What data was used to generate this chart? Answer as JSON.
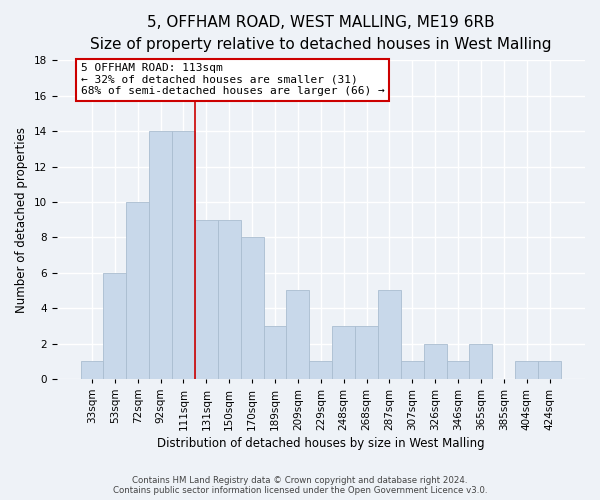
{
  "title": "5, OFFHAM ROAD, WEST MALLING, ME19 6RB",
  "subtitle": "Size of property relative to detached houses in West Malling",
  "xlabel": "Distribution of detached houses by size in West Malling",
  "ylabel": "Number of detached properties",
  "bar_labels": [
    "33sqm",
    "53sqm",
    "72sqm",
    "92sqm",
    "111sqm",
    "131sqm",
    "150sqm",
    "170sqm",
    "189sqm",
    "209sqm",
    "229sqm",
    "248sqm",
    "268sqm",
    "287sqm",
    "307sqm",
    "326sqm",
    "346sqm",
    "365sqm",
    "385sqm",
    "404sqm",
    "424sqm"
  ],
  "bar_values": [
    1,
    6,
    10,
    14,
    14,
    9,
    9,
    8,
    3,
    5,
    1,
    3,
    3,
    5,
    1,
    2,
    1,
    2,
    0,
    1,
    1
  ],
  "bar_color": "#c8d8ea",
  "bar_edge_color": "#aabdd0",
  "vline_x": 4.5,
  "vline_color": "#cc0000",
  "annotation_title": "5 OFFHAM ROAD: 113sqm",
  "annotation_line1": "← 32% of detached houses are smaller (31)",
  "annotation_line2": "68% of semi-detached houses are larger (66) →",
  "annotation_box_color": "white",
  "annotation_box_edge": "#cc0000",
  "ylim": [
    0,
    18
  ],
  "yticks": [
    0,
    2,
    4,
    6,
    8,
    10,
    12,
    14,
    16,
    18
  ],
  "footnote1": "Contains HM Land Registry data © Crown copyright and database right 2024.",
  "footnote2": "Contains public sector information licensed under the Open Government Licence v3.0.",
  "bg_color": "#eef2f7",
  "grid_color": "white",
  "title_fontsize": 11,
  "subtitle_fontsize": 9.5,
  "xlabel_fontsize": 8.5,
  "ylabel_fontsize": 8.5,
  "annot_fontsize": 8,
  "tick_fontsize": 7.5
}
